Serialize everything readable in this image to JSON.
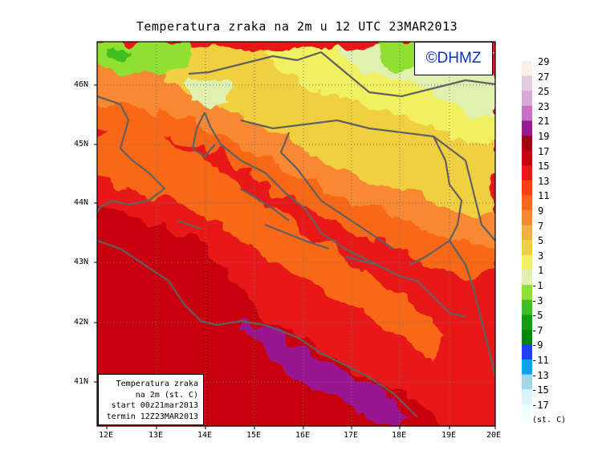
{
  "title": "Temperatura zraka na 2m u 12 UTC 23MAR2013",
  "copyright": "©DHMZ",
  "info_box": {
    "line1": "Temperatura zraka",
    "line2": "na 2m (st. C)",
    "line3": "start 00z21mar2013",
    "line4": "termin 12Z23MAR2013"
  },
  "longitude_ticks": [
    "12E",
    "13E",
    "14E",
    "15E",
    "16E",
    "17E",
    "18E",
    "19E",
    "20E"
  ],
  "latitude_ticks": [
    "46N",
    "45N",
    "44N",
    "43N",
    "42N",
    "41N"
  ],
  "legend": {
    "labels": [
      "29",
      "27",
      "25",
      "23",
      "21",
      "19",
      "17",
      "15",
      "13",
      "11",
      "9",
      "7",
      "5",
      "3",
      "1",
      "-1",
      "-3",
      "-5",
      "-7",
      "-9",
      "-11",
      "-13",
      "-15",
      "-17"
    ],
    "colors": [
      "#fbeee4",
      "#e0cbe0",
      "#d8a8d8",
      "#c870c8",
      "#9a1890",
      "#a00010",
      "#c80010",
      "#e81818",
      "#f84010",
      "#f86818",
      "#f88830",
      "#f0b040",
      "#f0d040",
      "#f0f060",
      "#e0f0b0",
      "#90e030",
      "#40c020",
      "#10a010",
      "#008800",
      "#2040f0",
      "#10a0f0",
      "#a0d8e8",
      "#d8f4f8",
      "#f0ffff"
    ],
    "unit": "(st. C)"
  }
}
